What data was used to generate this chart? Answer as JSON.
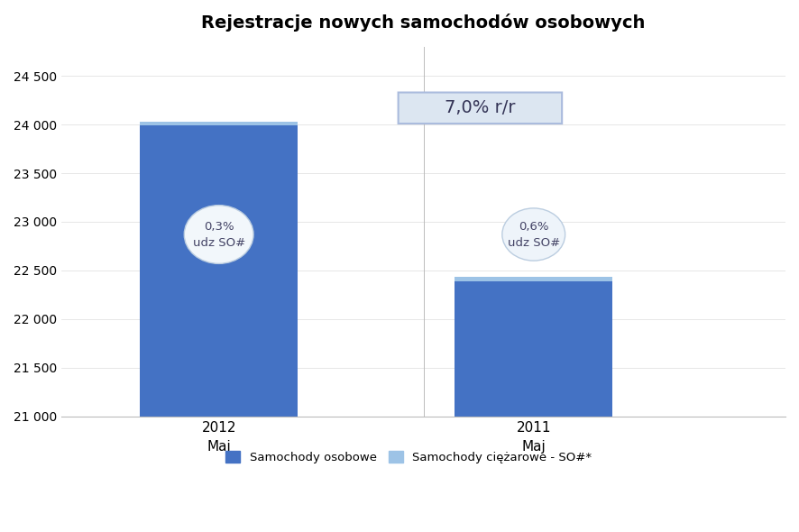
{
  "title": "Rejestracje nowych samochodów osobowych",
  "categories": [
    "2012\nMaj",
    "2011\nMaj"
  ],
  "values": [
    24030,
    22430
  ],
  "bar_color": "#4472C4",
  "bar_top_color": "#9DC3E6",
  "ylim_min": 21000,
  "ylim_max": 24500,
  "yticks": [
    21000,
    21500,
    22000,
    22500,
    23000,
    23500,
    24000,
    24500
  ],
  "annotation_box_text": "7,0% r/r",
  "ellipse_texts": [
    [
      "0,3%",
      "udz SO#"
    ],
    [
      "0,6%",
      "udz SO#"
    ]
  ],
  "legend_labels": [
    "Samochody osobowe",
    "Samochody ciężarowe - SO#*"
  ],
  "legend_colors": [
    "#4472C4",
    "#9DC3E6"
  ],
  "background_color": "#FFFFFF",
  "title_fontsize": 14,
  "tick_fontsize": 10
}
